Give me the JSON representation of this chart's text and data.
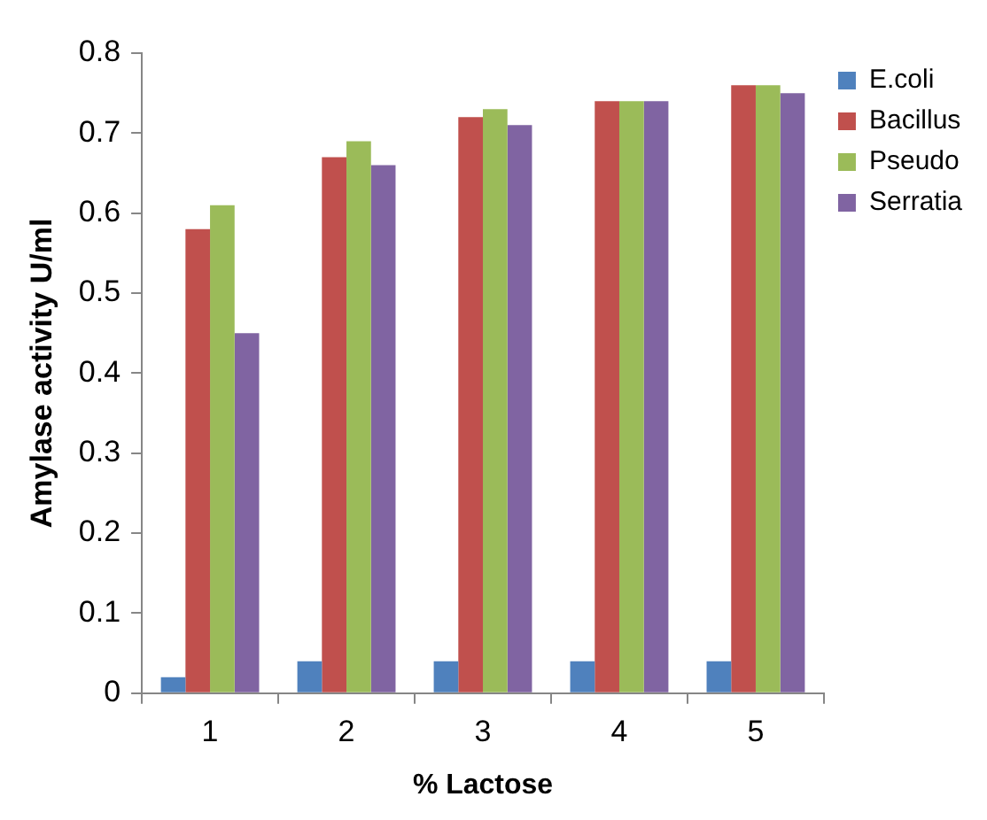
{
  "chart_data": {
    "type": "bar",
    "xlabel": "% Lactose",
    "ylabel": "Amylase activity U/ml",
    "categories": [
      "1",
      "2",
      "3",
      "4",
      "5"
    ],
    "series": [
      {
        "name": "E.coli",
        "color": "#4f81bd",
        "values": [
          0.02,
          0.04,
          0.04,
          0.04,
          0.04
        ]
      },
      {
        "name": "Bacillus",
        "color": "#c0504d",
        "values": [
          0.58,
          0.67,
          0.72,
          0.74,
          0.76
        ]
      },
      {
        "name": "Pseudo",
        "color": "#9bbb59",
        "values": [
          0.61,
          0.69,
          0.73,
          0.74,
          0.76
        ]
      },
      {
        "name": "Serratia",
        "color": "#8064a2",
        "values": [
          0.45,
          0.66,
          0.71,
          0.74,
          0.75
        ]
      }
    ],
    "ylim": [
      0,
      0.8
    ],
    "yticks": [
      0,
      0.1,
      0.2,
      0.3,
      0.4,
      0.5,
      0.6,
      0.7,
      0.8
    ],
    "grid": false,
    "legend": "top right"
  }
}
